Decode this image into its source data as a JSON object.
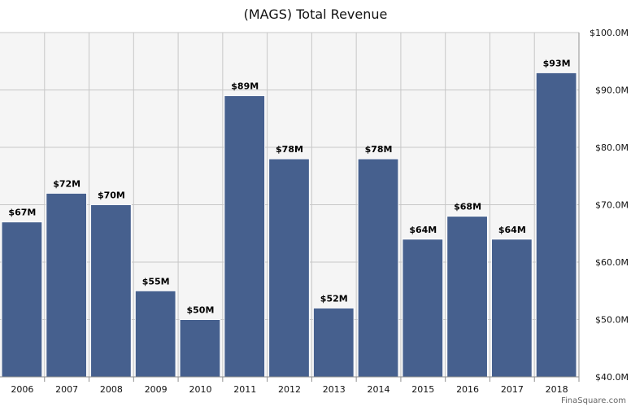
{
  "chart_data": {
    "type": "bar",
    "title": "(MAGS) Total Revenue",
    "categories": [
      "2006",
      "2007",
      "2008",
      "2009",
      "2010",
      "2011",
      "2012",
      "2013",
      "2014",
      "2015",
      "2016",
      "2017",
      "2018"
    ],
    "values": [
      67,
      72,
      70,
      55,
      50,
      89,
      78,
      52,
      78,
      64,
      68,
      64,
      93
    ],
    "data_labels": [
      "$67M",
      "$72M",
      "$70M",
      "$55M",
      "$50M",
      "$89M",
      "$78M",
      "$52M",
      "$78M",
      "$64M",
      "$68M",
      "$64M",
      "$93M"
    ],
    "y_ticks": [
      40,
      50,
      60,
      70,
      80,
      90,
      100
    ],
    "y_tick_labels": [
      "$40.0M",
      "$50.0M",
      "$60.0M",
      "$70.0M",
      "$80.0M",
      "$90.0M",
      "$100.0M"
    ],
    "ylim": [
      40,
      100
    ],
    "y_axis_position": "right",
    "grid": true,
    "unit": "$M",
    "colors": {
      "bar": "#46608e",
      "bar_stroke": "#ffffff",
      "plot_background": "#f5f5f5",
      "grid": "#c7c7c7",
      "axis": "#8f8f8f"
    }
  },
  "footer": {
    "credit": "FinaSquare.com"
  }
}
